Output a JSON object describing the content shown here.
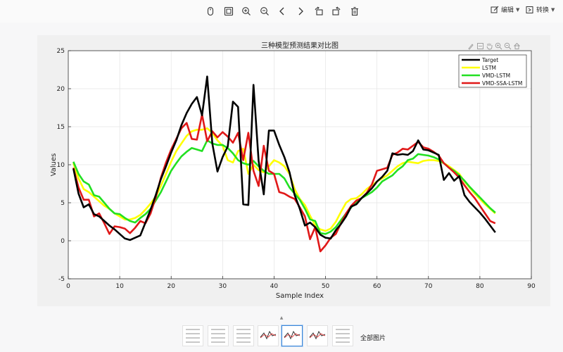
{
  "toolbar": {
    "icons": [
      "mouse-icon",
      "fit-page-icon",
      "zoom-in-icon",
      "zoom-out-icon",
      "prev-icon",
      "next-icon",
      "rotate-left-icon",
      "rotate-right-icon",
      "delete-icon"
    ],
    "edit_label": "编辑",
    "convert_label": "转换"
  },
  "figure_tools": [
    "brush-icon",
    "data-tip-icon",
    "pan-icon",
    "zoom-in-icon",
    "zoom-out-icon",
    "home-icon"
  ],
  "thumbnails": {
    "count": 7,
    "active_index": 4,
    "all_label": "全部图片"
  },
  "colors": {
    "target": "#000000",
    "lstm": "#ffff00",
    "vmd_lstm": "#22e022",
    "vmd_ssa_lstm": "#e01818",
    "thumb_active_border": "#3b86d9"
  },
  "chart_data": {
    "type": "line",
    "title": "三种模型预测结果对比图",
    "xlabel": "Sample Index",
    "ylabel": "Values",
    "xlim": [
      0,
      90
    ],
    "ylim": [
      -5,
      25
    ],
    "xticks": [
      "0",
      "10",
      "20",
      "30",
      "40",
      "50",
      "60",
      "70",
      "80",
      "90"
    ],
    "yticks": [
      "-5",
      "0",
      "5",
      "10",
      "15",
      "20",
      "25"
    ],
    "grid": true,
    "legend_position": "top-right",
    "x": [
      1,
      2,
      3,
      4,
      5,
      6,
      7,
      8,
      9,
      10,
      11,
      12,
      13,
      14,
      15,
      16,
      17,
      18,
      19,
      20,
      21,
      22,
      23,
      24,
      25,
      26,
      27,
      28,
      29,
      30,
      31,
      32,
      33,
      34,
      35,
      36,
      37,
      38,
      39,
      40,
      41,
      42,
      43,
      44,
      45,
      46,
      47,
      48,
      49,
      50,
      51,
      52,
      53,
      54,
      55,
      56,
      57,
      58,
      59,
      60,
      61,
      62,
      63,
      64,
      65,
      66,
      67,
      68,
      69,
      70,
      71,
      72,
      73,
      74,
      75,
      76,
      77,
      78,
      79,
      80,
      81,
      82,
      83
    ],
    "series": [
      {
        "name": "Target",
        "values": [
          9.5,
          6.2,
          4.4,
          4.8,
          3.5,
          3.2,
          2.6,
          2.0,
          1.5,
          0.9,
          0.3,
          0.1,
          0.4,
          0.7,
          2.4,
          4.1,
          6.0,
          8.1,
          9.8,
          11.6,
          13.2,
          15.2,
          16.8,
          18.0,
          18.9,
          16.5,
          21.6,
          12.8,
          9.1,
          11.0,
          12.4,
          18.3,
          17.6,
          4.8,
          4.7,
          20.5,
          10.5,
          6.1,
          14.5,
          14.5,
          12.6,
          11.0,
          9.0,
          6.0,
          4.2,
          2.0,
          2.4,
          1.8,
          0.8,
          0.4,
          0.3,
          1.4,
          2.2,
          3.2,
          4.5,
          4.8,
          5.6,
          6.2,
          6.9,
          7.8,
          8.4,
          9.2,
          11.5,
          11.3,
          11.4,
          11.3,
          11.8,
          13.2,
          12.0,
          11.9,
          11.6,
          11.3,
          8.0,
          8.9,
          7.9,
          8.5,
          6.0,
          5.1,
          4.4,
          3.7,
          2.9,
          2.0,
          1.1
        ]
      },
      {
        "name": "LSTM",
        "values": [
          10.2,
          8.2,
          6.8,
          6.4,
          5.8,
          5.2,
          4.6,
          4.2,
          3.6,
          3.2,
          2.8,
          2.8,
          3.0,
          3.4,
          4.1,
          4.9,
          5.8,
          7.2,
          8.8,
          10.4,
          11.8,
          12.8,
          13.8,
          14.4,
          14.6,
          14.6,
          14.8,
          14.2,
          13.2,
          12.5,
          10.6,
          10.3,
          11.8,
          12.1,
          8.8,
          10.0,
          9.3,
          9.0,
          9.8,
          10.6,
          10.3,
          9.8,
          8.8,
          6.8,
          5.5,
          4.7,
          3.3,
          2.0,
          1.5,
          1.3,
          1.6,
          2.5,
          3.8,
          5.0,
          5.5,
          5.6,
          6.1,
          6.8,
          7.3,
          7.8,
          8.2,
          8.6,
          9.2,
          9.8,
          10.2,
          10.4,
          10.3,
          10.2,
          10.5,
          10.6,
          10.6,
          10.5,
          10.2,
          9.8,
          9.3,
          8.8,
          7.8,
          7.0,
          6.2,
          5.5,
          4.8,
          4.2,
          3.6
        ]
      },
      {
        "name": "VMD-LSTM",
        "values": [
          10.4,
          8.8,
          7.8,
          7.4,
          6.0,
          5.8,
          5.0,
          4.2,
          3.6,
          3.5,
          3.0,
          2.6,
          2.4,
          3.0,
          3.5,
          4.2,
          5.3,
          6.4,
          7.8,
          9.2,
          10.2,
          11.1,
          11.7,
          12.2,
          12.0,
          11.8,
          13.2,
          12.8,
          12.6,
          12.6,
          12.2,
          11.5,
          10.6,
          10.2,
          10.0,
          10.5,
          9.8,
          9.2,
          8.8,
          8.8,
          8.8,
          8.2,
          7.0,
          6.2,
          5.4,
          4.2,
          2.8,
          2.6,
          1.0,
          0.9,
          1.2,
          1.8,
          2.7,
          3.6,
          4.4,
          5.1,
          5.6,
          6.0,
          6.4,
          7.0,
          7.8,
          8.2,
          8.6,
          9.3,
          9.8,
          10.6,
          10.8,
          11.4,
          11.3,
          11.2,
          11.0,
          10.7,
          10.2,
          9.6,
          9.2,
          8.6,
          7.9,
          7.1,
          6.4,
          5.7,
          5.0,
          4.3,
          3.7
        ]
      },
      {
        "name": "VMD-SSA-LSTM",
        "values": [
          9.6,
          7.0,
          5.4,
          5.4,
          3.2,
          3.6,
          2.3,
          0.9,
          1.9,
          1.8,
          1.6,
          1.0,
          1.7,
          2.6,
          2.3,
          3.6,
          5.7,
          8.3,
          10.3,
          12.0,
          13.4,
          14.8,
          15.5,
          13.4,
          13.3,
          16.6,
          13.1,
          14.4,
          13.6,
          14.3,
          13.7,
          12.9,
          14.2,
          10.6,
          14.2,
          9.2,
          7.2,
          12.5,
          9.2,
          8.8,
          6.4,
          6.2,
          5.8,
          5.5,
          4.4,
          3.2,
          0.2,
          1.8,
          -1.4,
          -0.6,
          0.4,
          0.9,
          2.3,
          3.6,
          4.6,
          5.3,
          5.6,
          6.3,
          7.4,
          9.2,
          9.4,
          9.6,
          11.3,
          11.6,
          12.1,
          12.0,
          12.5,
          13.0,
          12.3,
          12.1,
          11.7,
          11.2,
          10.2,
          9.6,
          9.0,
          8.3,
          7.3,
          6.4,
          5.6,
          4.6,
          3.6,
          2.6,
          2.3
        ]
      }
    ]
  }
}
